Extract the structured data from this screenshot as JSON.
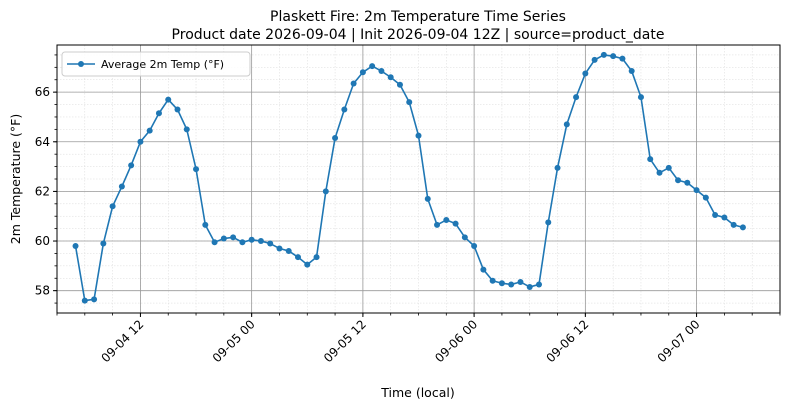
{
  "chart_data": {
    "type": "line",
    "title": "Plaskett Fire: 2m Temperature Time Series",
    "subtitle": "Product date 2026-09-04 | Init 2026-09-04 12Z | source=product_date",
    "xlabel": "Time (local)",
    "ylabel": "2m Temperature (°F)",
    "x_start": "2026-09-04 05:00",
    "x_step_hours": 1,
    "xlim": [
      "2026-09-04 03:00",
      "2026-09-07 09:00"
    ],
    "ylim": [
      57.1,
      67.9
    ],
    "x_ticks": [
      {
        "label": "09-04 12",
        "time": "2026-09-04 12:00"
      },
      {
        "label": "09-05 00",
        "time": "2026-09-05 00:00"
      },
      {
        "label": "09-05 12",
        "time": "2026-09-05 12:00"
      },
      {
        "label": "09-06 00",
        "time": "2026-09-06 00:00"
      },
      {
        "label": "09-06 12",
        "time": "2026-09-06 12:00"
      },
      {
        "label": "09-07 00",
        "time": "2026-09-07 00:00"
      }
    ],
    "y_ticks": [
      58,
      60,
      62,
      64,
      66
    ],
    "grid": true,
    "legend_position": "top-left",
    "series": [
      {
        "name": "Average 2m Temp (°F)",
        "color": "#1f77b4",
        "values": [
          59.8,
          57.6,
          57.65,
          59.9,
          61.4,
          62.2,
          63.05,
          64.0,
          64.45,
          65.15,
          65.7,
          65.3,
          64.5,
          62.9,
          60.65,
          59.95,
          60.1,
          60.15,
          59.95,
          60.05,
          60.0,
          59.9,
          59.7,
          59.6,
          59.35,
          59.05,
          59.35,
          62.0,
          64.15,
          65.3,
          66.35,
          66.8,
          67.05,
          66.85,
          66.6,
          66.3,
          65.6,
          64.25,
          61.7,
          60.65,
          60.85,
          60.7,
          60.15,
          59.8,
          58.85,
          58.4,
          58.3,
          58.25,
          58.35,
          58.15,
          58.25,
          60.75,
          62.95,
          64.7,
          65.8,
          66.75,
          67.3,
          67.5,
          67.45,
          67.35,
          66.85,
          65.8,
          63.3,
          62.75,
          62.95,
          62.45,
          62.35,
          62.05,
          61.75,
          61.05,
          60.95,
          60.65,
          60.55
        ]
      }
    ]
  }
}
